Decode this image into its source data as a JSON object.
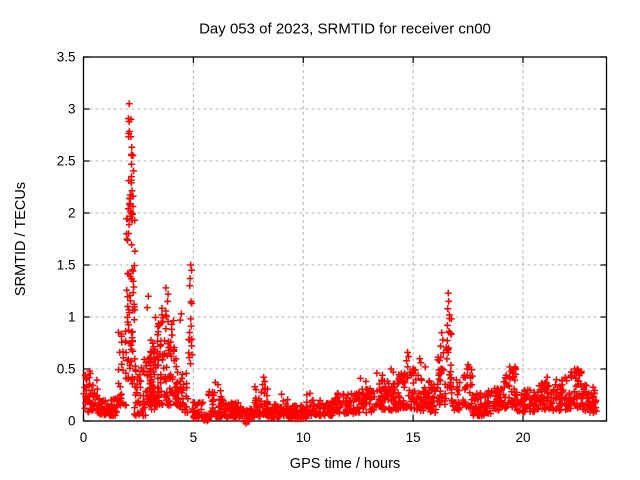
{
  "chart_data": {
    "type": "scatter",
    "title": "Day 053 of 2023, SRMTID for receiver cn00",
    "xlabel": "GPS time / hours",
    "ylabel": "SRMTID / TECUs",
    "xlim": [
      0,
      23.8
    ],
    "ylim": [
      0,
      3.5
    ],
    "xticks": [
      [
        0,
        "0"
      ],
      [
        5,
        "5"
      ],
      [
        10,
        "10"
      ],
      [
        15,
        "15"
      ],
      [
        20,
        "20"
      ]
    ],
    "yticks": [
      [
        0,
        "0"
      ],
      [
        0.5,
        "0.5"
      ],
      [
        1,
        "1"
      ],
      [
        1.5,
        "1.5"
      ],
      [
        2,
        "2"
      ],
      [
        2.5,
        "2.5"
      ],
      [
        3,
        "3"
      ],
      [
        3.5,
        "3.5"
      ]
    ],
    "grid": true,
    "legend": "none",
    "marker": {
      "shape": "plus",
      "size": 7
    },
    "colors": {
      "marker": "#ff0000",
      "grid": "#b4b4b4",
      "text": "#000000",
      "border": "#000000",
      "background": "#ffffff"
    },
    "series_name": "SRMTID",
    "segments_format": [
      "x0",
      "x1",
      "n",
      "y0",
      "y1",
      "bias"
    ],
    "segments": [
      [
        0.02,
        0.15,
        12,
        0.12,
        0.45,
        1.0
      ],
      [
        0.15,
        0.65,
        34,
        0.08,
        0.48,
        1.6
      ],
      [
        0.65,
        1.55,
        62,
        0.05,
        0.22,
        1.3
      ],
      [
        1.55,
        1.95,
        30,
        0.15,
        0.95,
        1.8
      ],
      [
        1.95,
        2.35,
        72,
        0.35,
        2.2,
        1.0
      ],
      [
        2.02,
        2.3,
        12,
        2.2,
        2.65,
        1.0
      ],
      [
        2.04,
        2.2,
        7,
        2.72,
        2.92,
        1.0
      ],
      [
        2.3,
        2.85,
        46,
        0.05,
        0.62,
        1.4
      ],
      [
        2.85,
        3.25,
        36,
        0.1,
        0.68,
        1.5
      ],
      [
        3.0,
        4.35,
        150,
        0.15,
        0.78,
        1.5
      ],
      [
        3.25,
        3.45,
        6,
        0.75,
        1.0,
        1.0
      ],
      [
        3.5,
        3.62,
        5,
        0.78,
        1.1,
        1.0
      ],
      [
        3.72,
        3.88,
        6,
        0.8,
        1.25,
        1.0
      ],
      [
        3.98,
        4.12,
        5,
        0.78,
        1.2,
        1.0
      ],
      [
        4.35,
        4.75,
        26,
        0.05,
        0.5,
        1.5
      ],
      [
        4.78,
        5.0,
        14,
        0.3,
        1.32,
        1.0
      ],
      [
        4.95,
        5.45,
        30,
        0.02,
        0.18,
        1.3
      ],
      [
        5.48,
        5.68,
        22,
        0.0,
        0.06,
        1.0
      ],
      [
        5.68,
        6.35,
        48,
        0.04,
        0.3,
        1.6
      ],
      [
        6.35,
        7.3,
        62,
        0.03,
        0.18,
        1.3
      ],
      [
        7.3,
        7.55,
        18,
        -0.03,
        0.12,
        1.0
      ],
      [
        7.55,
        8.05,
        36,
        0.04,
        0.22,
        1.4
      ],
      [
        8.05,
        8.4,
        26,
        0.05,
        0.32,
        1.3
      ],
      [
        8.4,
        9.0,
        42,
        0.03,
        0.16,
        1.3
      ],
      [
        9.0,
        9.3,
        20,
        0.05,
        0.3,
        1.5
      ],
      [
        9.3,
        10.15,
        56,
        0.02,
        0.15,
        1.3
      ],
      [
        10.15,
        10.45,
        20,
        0.05,
        0.27,
        1.5
      ],
      [
        10.45,
        11.4,
        62,
        0.05,
        0.2,
        1.3
      ],
      [
        11.4,
        12.3,
        62,
        0.07,
        0.27,
        1.4
      ],
      [
        12.3,
        13.2,
        62,
        0.08,
        0.32,
        1.4
      ],
      [
        13.2,
        14.35,
        78,
        0.1,
        0.4,
        1.5
      ],
      [
        14.35,
        15.05,
        52,
        0.12,
        0.52,
        1.5
      ],
      [
        15.05,
        15.75,
        52,
        0.1,
        0.5,
        1.5
      ],
      [
        15.75,
        16.1,
        26,
        0.08,
        0.35,
        1.4
      ],
      [
        16.1,
        16.5,
        30,
        0.15,
        0.7,
        1.4
      ],
      [
        16.5,
        16.75,
        26,
        0.3,
        1.0,
        1.2
      ],
      [
        16.75,
        17.15,
        26,
        0.1,
        0.4,
        1.4
      ],
      [
        17.15,
        17.7,
        30,
        0.12,
        0.54,
        1.3
      ],
      [
        17.7,
        18.6,
        62,
        0.05,
        0.3,
        1.4
      ],
      [
        18.6,
        19.1,
        36,
        0.1,
        0.32,
        1.4
      ],
      [
        19.1,
        19.7,
        42,
        0.12,
        0.52,
        1.4
      ],
      [
        19.7,
        20.6,
        62,
        0.08,
        0.3,
        1.4
      ],
      [
        20.6,
        21.35,
        52,
        0.1,
        0.38,
        1.4
      ],
      [
        21.35,
        22.15,
        56,
        0.1,
        0.42,
        1.4
      ],
      [
        22.15,
        22.7,
        46,
        0.12,
        0.5,
        1.4
      ],
      [
        22.7,
        23.35,
        52,
        0.08,
        0.35,
        1.4
      ]
    ],
    "outliers": [
      [
        2.08,
        3.05
      ],
      [
        2.95,
        1.2
      ],
      [
        2.9,
        1.09
      ],
      [
        3.75,
        1.28
      ],
      [
        3.85,
        1.22
      ],
      [
        4.4,
        0.97
      ],
      [
        4.45,
        1.03
      ],
      [
        4.88,
        1.5
      ],
      [
        4.92,
        1.45
      ],
      [
        4.85,
        1.37
      ],
      [
        6.0,
        0.37
      ],
      [
        6.12,
        0.35
      ],
      [
        7.8,
        0.33
      ],
      [
        7.85,
        0.3
      ],
      [
        8.2,
        0.42
      ],
      [
        8.25,
        0.38
      ],
      [
        8.15,
        0.35
      ],
      [
        12.6,
        0.41
      ],
      [
        12.85,
        0.38
      ],
      [
        13.35,
        0.46
      ],
      [
        13.6,
        0.44
      ],
      [
        14.0,
        0.5
      ],
      [
        14.1,
        0.47
      ],
      [
        14.75,
        0.66
      ],
      [
        14.8,
        0.62
      ],
      [
        14.7,
        0.58
      ],
      [
        15.3,
        0.6
      ],
      [
        15.35,
        0.56
      ],
      [
        15.55,
        0.52
      ],
      [
        16.3,
        0.85
      ],
      [
        16.35,
        0.78
      ],
      [
        16.25,
        0.72
      ],
      [
        16.6,
        1.23
      ],
      [
        16.62,
        1.15
      ],
      [
        16.58,
        1.08
      ],
      [
        16.65,
        1.02
      ],
      [
        17.5,
        0.54
      ],
      [
        17.55,
        0.52
      ],
      [
        19.4,
        0.52
      ],
      [
        19.45,
        0.48
      ],
      [
        21.1,
        0.42
      ],
      [
        22.35,
        0.5
      ],
      [
        22.5,
        0.47
      ]
    ],
    "solid_square_marker": {
      "x": 5.58,
      "y": 0.02,
      "size": 7
    }
  }
}
